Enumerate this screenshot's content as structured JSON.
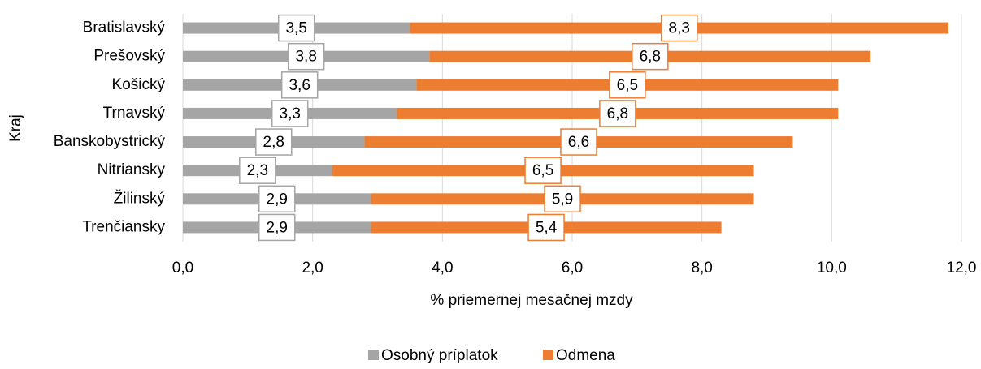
{
  "chart_data": {
    "type": "bar",
    "orientation": "horizontal",
    "stacked": true,
    "categories": [
      "Bratislavský",
      "Prešovský",
      "Košický",
      "Trnavský",
      "Banskobystrický",
      "Nitriansky",
      "Žilinský",
      "Trenčiansky"
    ],
    "series": [
      {
        "name": "Osobný príplatok",
        "color": "#a5a5a5",
        "values": [
          3.5,
          3.8,
          3.6,
          3.3,
          2.8,
          2.3,
          2.9,
          2.9
        ],
        "value_labels": [
          "3,5",
          "3,8",
          "3,6",
          "3,3",
          "2,8",
          "2,3",
          "2,9",
          "2,9"
        ]
      },
      {
        "name": "Odmena",
        "color": "#ed7d31",
        "values": [
          8.3,
          6.8,
          6.5,
          6.8,
          6.6,
          6.5,
          5.9,
          5.4
        ],
        "value_labels": [
          "8,3",
          "6,8",
          "6,5",
          "6,8",
          "6,6",
          "6,5",
          "5,9",
          "5,4"
        ]
      }
    ],
    "xlabel": "% priemernej mesačnej mzdy",
    "ylabel": "Kraj",
    "xlim": [
      0,
      12
    ],
    "xticks": [
      {
        "value": 0,
        "label": "0,0"
      },
      {
        "value": 2,
        "label": "2,0"
      },
      {
        "value": 4,
        "label": "4,0"
      },
      {
        "value": 6,
        "label": "6,0"
      },
      {
        "value": 8,
        "label": "8,0"
      },
      {
        "value": 10,
        "label": "10,0"
      },
      {
        "value": 12,
        "label": "12,0"
      }
    ],
    "grid": true,
    "legend": "bottom"
  }
}
